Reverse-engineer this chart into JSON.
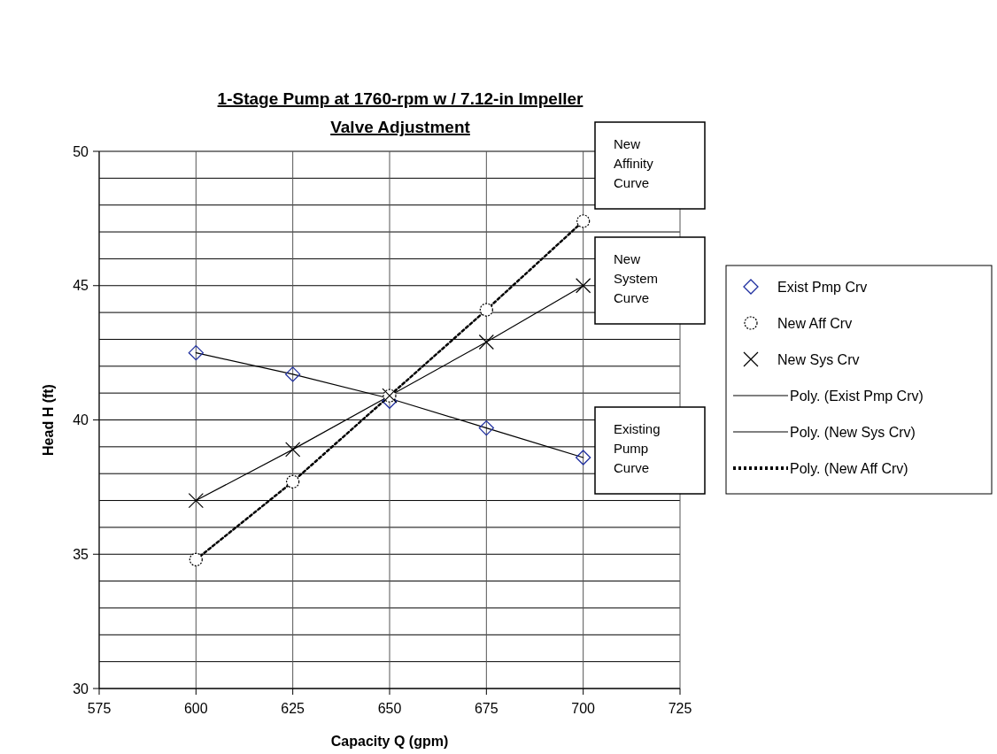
{
  "chart_data": {
    "type": "scatter",
    "title": "1-Stage Pump at 1760-rpm w / 7.12-in Impeller",
    "subtitle": "Valve Adjustment",
    "xlabel": "Capacity Q (gpm)",
    "ylabel": "Head H (ft)",
    "xlim": [
      575,
      725
    ],
    "xticks": [
      575,
      600,
      625,
      650,
      675,
      700,
      725
    ],
    "ylim": [
      30,
      50
    ],
    "yticks": [
      30,
      {
        "value": 31,
        "label": null
      },
      {
        "value": 32,
        "label": null
      },
      {
        "value": 33,
        "label": null
      },
      {
        "value": 34,
        "label": null
      },
      35,
      {
        "value": 36,
        "label": null
      },
      {
        "value": 37,
        "label": null
      },
      {
        "value": 38,
        "label": null
      },
      {
        "value": 39,
        "label": null
      },
      40,
      {
        "value": 41,
        "label": null
      },
      {
        "value": 42,
        "label": null
      },
      {
        "value": 43,
        "label": null
      },
      {
        "value": 44,
        "label": null
      },
      45,
      {
        "value": 46,
        "label": null
      },
      {
        "value": 47,
        "label": null
      },
      {
        "value": 48,
        "label": null
      },
      {
        "value": 49,
        "label": null
      },
      50
    ],
    "grid": true,
    "legend": "right",
    "x": [
      600,
      625,
      650,
      675,
      700
    ],
    "series": [
      {
        "name": "Exist Pmp Crv",
        "marker": "diamond",
        "color": "#1f2f9f",
        "values": [
          42.5,
          41.7,
          40.7,
          39.7,
          38.6
        ]
      },
      {
        "name": "New Aff Crv",
        "marker": "circle",
        "color": "#000000",
        "values": [
          34.8,
          37.7,
          40.9,
          44.1,
          47.4
        ]
      },
      {
        "name": "New Sys Crv",
        "marker": "cross",
        "color": "#000000",
        "values": [
          37.0,
          38.9,
          40.9,
          42.9,
          45.0
        ]
      },
      {
        "name": "Poly. (Exist Pmp Crv)",
        "type": "line",
        "marker": "none",
        "line_style": "solid",
        "color": "#000000",
        "values": [
          42.5,
          41.7,
          40.8,
          39.7,
          38.6
        ]
      },
      {
        "name": "Poly. (New Sys Crv)",
        "type": "line",
        "marker": "none",
        "line_style": "solid",
        "color": "#000000",
        "values": [
          37.0,
          38.9,
          40.9,
          42.9,
          45.0
        ]
      },
      {
        "name": "Poly. (New Aff Crv)",
        "type": "line",
        "marker": "none",
        "line_style": "dotted",
        "color": "#000000",
        "values": [
          34.8,
          37.7,
          40.9,
          44.1,
          47.4
        ]
      }
    ],
    "annotations": [
      "New Affinity Curve",
      "New System Curve",
      "Existing Pump Curve"
    ]
  }
}
